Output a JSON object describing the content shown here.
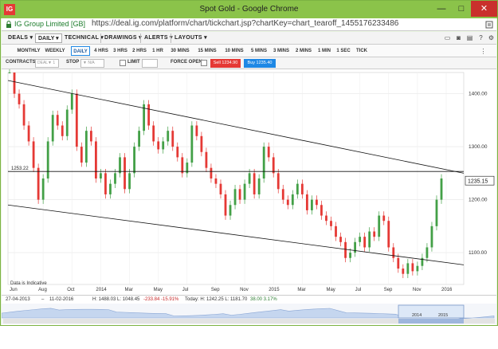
{
  "window": {
    "title": "Spot Gold - Google Chrome",
    "logo": "IG",
    "site_identity": "IG Group Limited [GB]",
    "url": "https://deal.ig.com/platform/chart/tickchart.jsp?chartKey=chart_tearoff_1455176233486",
    "icons": [
      "ig-logo",
      "minimize-icon",
      "maximize-icon",
      "close-icon",
      "lock-icon",
      "page-icon"
    ]
  },
  "menu": {
    "deals": "DEALS",
    "daily": "DAILY",
    "technical": "TECHNICAL",
    "drawings": "DRAWINGS",
    "alerts": "ALERTS",
    "layouts": "LAYOUTS"
  },
  "timeframes": [
    "MONTHLY",
    "WEEKLY",
    "DAILY",
    "4 HRS",
    "3 HRS",
    "2 HRS",
    "1 HR",
    "30 MINS",
    "15 MINS",
    "10 MINS",
    "5 MINS",
    "3 MINS",
    "2 MINS",
    "1 MIN",
    "1 SEC",
    "TICK"
  ],
  "active_timeframe": "DAILY",
  "order": {
    "contracts_label": "CONTRACTS",
    "contracts_placeholder": "DEAL▼ 1",
    "stop_label": "STOP",
    "stop_placeholder": "▼ N/A",
    "limit_label": "LIMIT",
    "force_open_label": "FORCE OPEN",
    "sell": "Sell 1234.90",
    "buy": "Buy 1235.40"
  },
  "chart_data": {
    "type": "line",
    "title": "",
    "horizontal_line_label": "1253.22",
    "current_price_label": "1235.15",
    "y_ticks": [
      "1400.00",
      "1300.00",
      "1200.00",
      "1100.00"
    ],
    "x_ticks": [
      "Jun",
      "Aug",
      "Oct",
      "2014",
      "Mar",
      "May",
      "Jul",
      "Sep",
      "Nov",
      "2015",
      "Mar",
      "May",
      "Jul",
      "Sep",
      "Nov",
      "2016"
    ],
    "ylim": [
      1040,
      1440
    ],
    "horizontal_line": 1253.22,
    "trendlines": [
      {
        "name": "upper",
        "from": [
          0,
          1425
        ],
        "to": [
          1.0,
          1250
        ]
      },
      {
        "name": "lower",
        "from": [
          0,
          1190
        ],
        "to": [
          1.0,
          1077
        ]
      }
    ],
    "series": [
      {
        "name": "",
        "values": [
          1480,
          1400,
          1380,
          1340,
          1310,
          1260,
          1200,
          1240,
          1310,
          1360,
          1340,
          1320,
          1370,
          1400,
          1300,
          1270,
          1330,
          1310,
          1240,
          1250,
          1210,
          1230,
          1250,
          1280,
          1220,
          1250,
          1300,
          1330,
          1380,
          1340,
          1310,
          1295,
          1310,
          1330,
          1300,
          1280,
          1250,
          1270,
          1340,
          1320,
          1290,
          1260,
          1240,
          1230,
          1210,
          1170,
          1190,
          1220,
          1200,
          1230,
          1250,
          1210,
          1240,
          1300,
          1280,
          1250,
          1220,
          1200,
          1190,
          1210,
          1230,
          1210,
          1180,
          1200,
          1190,
          1170,
          1160,
          1150,
          1130,
          1120,
          1090,
          1100,
          1120,
          1130,
          1110,
          1140,
          1130,
          1170,
          1160,
          1110,
          1090,
          1070,
          1060,
          1080,
          1065,
          1075,
          1090,
          1110,
          1150,
          1200,
          1240
        ]
      }
    ],
    "footer_note": "Data is Indicative",
    "grid": true
  },
  "infobar": {
    "start_date": "27-04-2013",
    "end_date": "11-02-2016",
    "range_stats": "H: 1488.03  L: 1048.45",
    "range_change": "-233.84  -15.91%",
    "today_stats": "Today: H: 1242.25  L: 1181.70",
    "today_change": "38.00  3.17%"
  },
  "navigator": {
    "year_labels": [
      "2014",
      "2015"
    ]
  }
}
